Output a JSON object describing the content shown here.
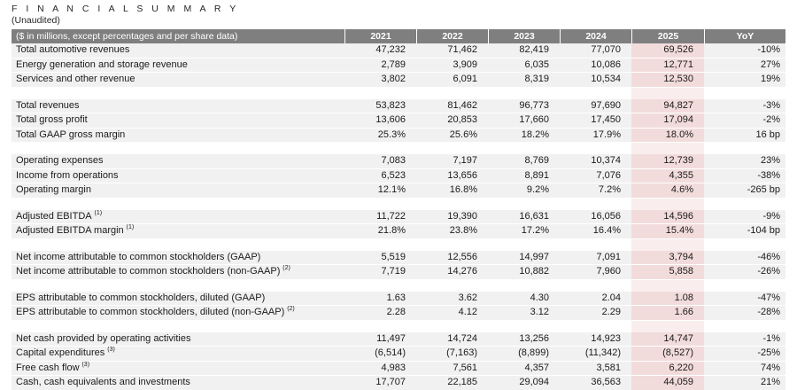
{
  "title": "F I N A N C I A L   S U M M A R Y",
  "subtitle": "(Unaudited)",
  "colors": {
    "header_bg": "#7f7f7f",
    "header_text": "#ffffff",
    "row_bg": "#f1f1f1",
    "highlight_column_bg": "#f2dcdb",
    "highlight_gap_bg": "#f9eeed",
    "text": "#1a1a1a"
  },
  "table": {
    "label_header": "($ in millions, except percentages and per share data)",
    "columns": [
      "2021",
      "2022",
      "2023",
      "2024",
      "2025",
      "YoY"
    ],
    "highlight_column": "2025",
    "sections": [
      {
        "rows": [
          {
            "label": "Total automotive revenues",
            "sup": "",
            "values": [
              "47,232",
              "71,462",
              "82,419",
              "77,070",
              "69,526",
              "-10%"
            ]
          },
          {
            "label": "Energy generation and storage revenue",
            "sup": "",
            "values": [
              "2,789",
              "3,909",
              "6,035",
              "10,086",
              "12,771",
              "27%"
            ]
          },
          {
            "label": "Services and other revenue",
            "sup": "",
            "values": [
              "3,802",
              "6,091",
              "8,319",
              "10,534",
              "12,530",
              "19%"
            ]
          }
        ]
      },
      {
        "rows": [
          {
            "label": "Total revenues",
            "sup": "",
            "values": [
              "53,823",
              "81,462",
              "96,773",
              "97,690",
              "94,827",
              "-3%"
            ]
          },
          {
            "label": "Total gross profit",
            "sup": "",
            "values": [
              "13,606",
              "20,853",
              "17,660",
              "17,450",
              "17,094",
              "-2%"
            ]
          },
          {
            "label": "Total GAAP gross margin",
            "sup": "",
            "values": [
              "25.3%",
              "25.6%",
              "18.2%",
              "17.9%",
              "18.0%",
              "16 bp"
            ]
          }
        ]
      },
      {
        "rows": [
          {
            "label": "Operating expenses",
            "sup": "",
            "values": [
              "7,083",
              "7,197",
              "8,769",
              "10,374",
              "12,739",
              "23%"
            ]
          },
          {
            "label": "Income from operations",
            "sup": "",
            "values": [
              "6,523",
              "13,656",
              "8,891",
              "7,076",
              "4,355",
              "-38%"
            ]
          },
          {
            "label": "Operating margin",
            "sup": "",
            "values": [
              "12.1%",
              "16.8%",
              "9.2%",
              "7.2%",
              "4.6%",
              "-265 bp"
            ]
          }
        ]
      },
      {
        "rows": [
          {
            "label": "Adjusted EBITDA",
            "sup": "(1)",
            "values": [
              "11,722",
              "19,390",
              "16,631",
              "16,056",
              "14,596",
              "-9%"
            ]
          },
          {
            "label": "Adjusted EBITDA margin",
            "sup": "(1)",
            "values": [
              "21.8%",
              "23.8%",
              "17.2%",
              "16.4%",
              "15.4%",
              "-104 bp"
            ]
          }
        ]
      },
      {
        "rows": [
          {
            "label": "Net income attributable to common stockholders (GAAP)",
            "sup": "",
            "values": [
              "5,519",
              "12,556",
              "14,997",
              "7,091",
              "3,794",
              "-46%"
            ]
          },
          {
            "label": "Net income attributable to common stockholders (non-GAAP)",
            "sup": "(2)",
            "values": [
              "7,719",
              "14,276",
              "10,882",
              "7,960",
              "5,858",
              "-26%"
            ]
          }
        ]
      },
      {
        "rows": [
          {
            "label": "EPS attributable to common stockholders, diluted (GAAP)",
            "sup": "",
            "values": [
              "1.63",
              "3.62",
              "4.30",
              "2.04",
              "1.08",
              "-47%"
            ]
          },
          {
            "label": "EPS attributable to common stockholders, diluted (non-GAAP)",
            "sup": "(2)",
            "values": [
              "2.28",
              "4.12",
              "3.12",
              "2.29",
              "1.66",
              "-28%"
            ]
          }
        ]
      },
      {
        "rows": [
          {
            "label": "Net cash provided by operating activities",
            "sup": "",
            "values": [
              "11,497",
              "14,724",
              "13,256",
              "14,923",
              "14,747",
              "-1%"
            ]
          },
          {
            "label": "Capital expenditures",
            "sup": "(3)",
            "values": [
              "(6,514)",
              "(7,163)",
              "(8,899)",
              "(11,342)",
              "(8,527)",
              "-25%"
            ]
          },
          {
            "label": "Free cash flow",
            "sup": "(3)",
            "values": [
              "4,983",
              "7,561",
              "4,357",
              "3,581",
              "6,220",
              "74%"
            ]
          },
          {
            "label": "Cash, cash equivalents and investments",
            "sup": "",
            "values": [
              "17,707",
              "22,185",
              "29,094",
              "36,563",
              "44,059",
              "21%"
            ]
          }
        ]
      }
    ]
  }
}
